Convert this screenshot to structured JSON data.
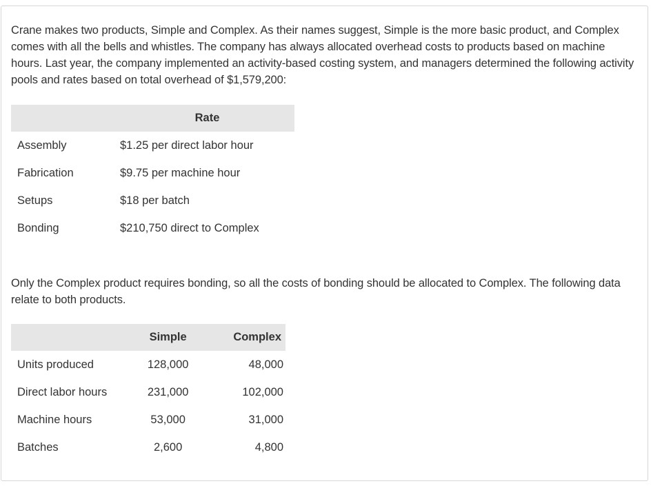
{
  "intro": "Crane makes two products, Simple and Complex. As their names suggest, Simple is the more basic product, and Complex comes with all the bells and whistles. The company has always allocated overhead costs to products based on machine hours. Last year, the company implemented an activity-based costing system, and managers determined the following activity pools and rates based on total overhead of $1,579,200:",
  "rate_table": {
    "header_rate": "Rate",
    "rows": [
      {
        "activity": "Assembly",
        "rate": "$1.25 per direct labor hour"
      },
      {
        "activity": "Fabrication",
        "rate": "$9.75 per machine hour"
      },
      {
        "activity": "Setups",
        "rate": "$18 per batch"
      },
      {
        "activity": "Bonding",
        "rate": "$210,750 direct to Complex"
      }
    ]
  },
  "middle": "Only the Complex product requires bonding, so all the costs of bonding should be allocated to Complex. The following data relate to both products.",
  "product_table": {
    "header_simple": "Simple",
    "header_complex": "Complex",
    "rows": [
      {
        "label": "Units produced",
        "simple": "128,000",
        "complex": "48,000"
      },
      {
        "label": "Direct labor hours",
        "simple": "231,000",
        "complex": "102,000"
      },
      {
        "label": "Machine hours",
        "simple": "53,000",
        "complex": "31,000"
      },
      {
        "label": "Batches",
        "simple": "2,600",
        "complex": "4,800"
      }
    ]
  }
}
